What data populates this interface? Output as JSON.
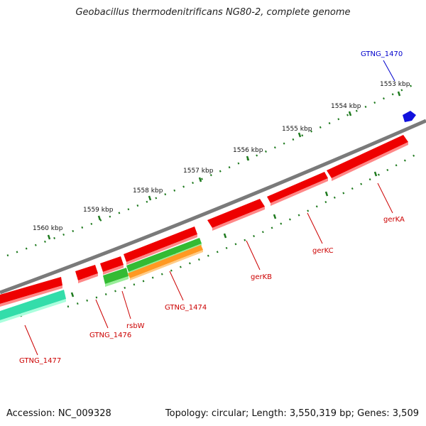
{
  "title": "Geobacillus thermodenitrificans NG80-2, complete genome",
  "footer": {
    "accession": "Accession: NC_009328",
    "summary": "Topology: circular; Length: 3,550,319 bp; Genes: 3,509"
  },
  "colors": {
    "backbone": "#7a7a7a",
    "tick": "#1e7a1e",
    "gene_red": "#ee0000",
    "gene_green": "#33bb33",
    "gene_teal": "#33ddaa",
    "gene_orange": "#ff9922",
    "gene_blue": "#1111dd",
    "label_red": "#cc0000",
    "label_blue": "#0000cc"
  },
  "ticks": [
    {
      "label": "1553 kbp"
    },
    {
      "label": "1554 kbp"
    },
    {
      "label": "1555 kbp"
    },
    {
      "label": "1556 kbp"
    },
    {
      "label": "1557 kbp"
    },
    {
      "label": "1558 kbp"
    },
    {
      "label": "1559 kbp"
    },
    {
      "label": "1560 kbp"
    }
  ],
  "genes": [
    {
      "label": "GTNG_1470",
      "color": "gene_blue"
    },
    {
      "label": "gerKA",
      "color": "gene_red"
    },
    {
      "label": "gerKC",
      "color": "gene_red"
    },
    {
      "label": "gerKB",
      "color": "gene_red"
    },
    {
      "label": "GTNG_1474",
      "color": "gene_orange"
    },
    {
      "label": "rsbW",
      "color": "gene_green"
    },
    {
      "label": "GTNG_1476",
      "color": "gene_red"
    },
    {
      "label": "GTNG_1477",
      "color": "gene_teal"
    }
  ]
}
